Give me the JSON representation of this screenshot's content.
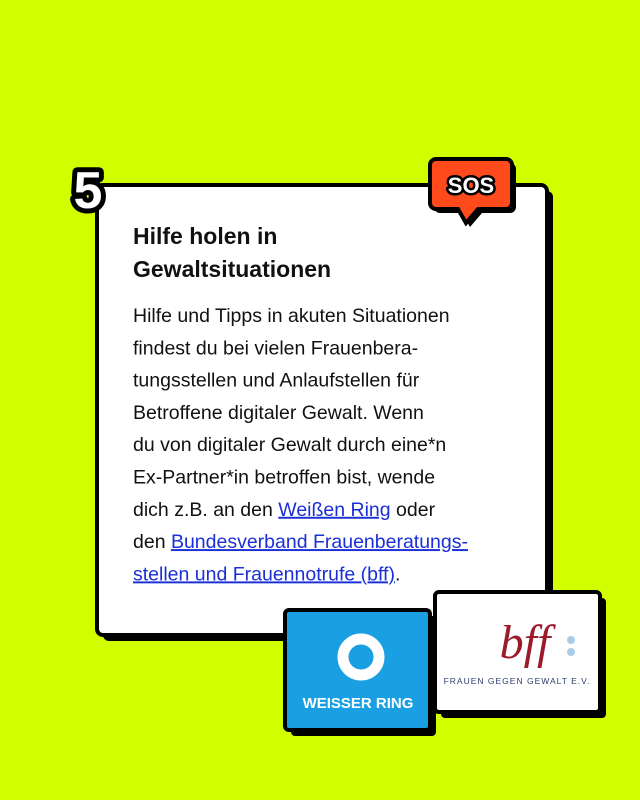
{
  "number": "5",
  "badge": "SOS",
  "card": {
    "title": [
      "Hilfe holen in",
      "Gewaltsituationen"
    ],
    "body": [
      [
        {
          "text": "Hilfe und Tipps in akuten Situationen"
        }
      ],
      [
        {
          "text": "findest du bei vielen Frauenbera-"
        }
      ],
      [
        {
          "text": "tungsstellen und Anlaufstellen für"
        }
      ],
      [
        {
          "text": "Betroffene digitaler Gewalt. Wenn"
        }
      ],
      [
        {
          "text": "du von digitaler Gewalt durch eine*n"
        }
      ],
      [
        {
          "text": "Ex-Partner*in betroffen bist, wende"
        }
      ],
      [
        {
          "text": "dich z.B. an den "
        },
        {
          "text": "Weißen Ring",
          "link": true
        },
        {
          "text": " oder"
        }
      ],
      [
        {
          "text": "den "
        },
        {
          "text": "Bundesverband Frauenberatungs-",
          "link": true
        }
      ],
      [
        {
          "text": "stellen und Frauennotrufe (bff)",
          "link": true
        },
        {
          "text": "."
        }
      ]
    ]
  },
  "logos": {
    "weisser_ring": {
      "label": "WEISSER RING"
    },
    "bff": {
      "name": "bff",
      "tagline": "FRAUEN GEGEN GEWALT E.V."
    }
  }
}
